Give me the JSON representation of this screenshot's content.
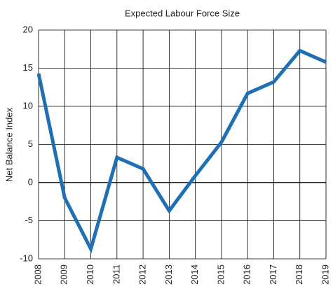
{
  "chart_data": {
    "type": "line",
    "title": "Expected Labour Force Size",
    "y_label": "Net Balance Index",
    "categories": [
      "2008",
      "2009",
      "2010",
      "2011",
      "2012",
      "2013",
      "2014",
      "2015",
      "2016",
      "2017",
      "2018",
      "2019"
    ],
    "series": [
      {
        "name": "Expected Labour Force Size",
        "color": "#1f6fb5",
        "values": [
          14.3,
          -2,
          -8.7,
          3.3,
          1.8,
          -3.7,
          0.9,
          5.3,
          11.7,
          13.2,
          17.3,
          15.8
        ]
      }
    ],
    "ylim": [
      -10,
      20
    ],
    "yticks": [
      -10,
      -5,
      0,
      5,
      10,
      15,
      20
    ],
    "grid": true
  }
}
